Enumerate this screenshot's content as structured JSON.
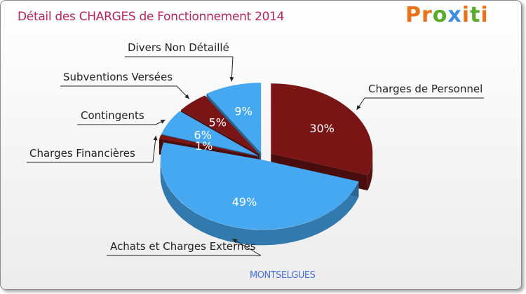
{
  "title": "Détail des CHARGES de Fonctionnement 2014",
  "logo": {
    "letters": [
      "P",
      "r",
      "o",
      "x",
      "i",
      "t",
      "i"
    ]
  },
  "commune": "MONTSELGUES",
  "chart_data": {
    "type": "pie",
    "title": "Détail des CHARGES de Fonctionnement 2014",
    "slices": [
      {
        "label": "Charges de Personnel",
        "value": 30,
        "pct_label": "30%",
        "color": "#7a1515"
      },
      {
        "label": "Achats et Charges Externes",
        "value": 49,
        "pct_label": "49%",
        "color": "#45a8f0"
      },
      {
        "label": "Charges Financières",
        "value": 1,
        "pct_label": "1%",
        "color": "#7a1515"
      },
      {
        "label": "Contingents",
        "value": 6,
        "pct_label": "6%",
        "color": "#45a8f0"
      },
      {
        "label": "Subventions Versées",
        "value": 5,
        "pct_label": "5%",
        "color": "#7a1515"
      },
      {
        "label": "Divers Non Détaillé",
        "value": 9,
        "pct_label": "9%",
        "color": "#45a8f0"
      }
    ]
  }
}
